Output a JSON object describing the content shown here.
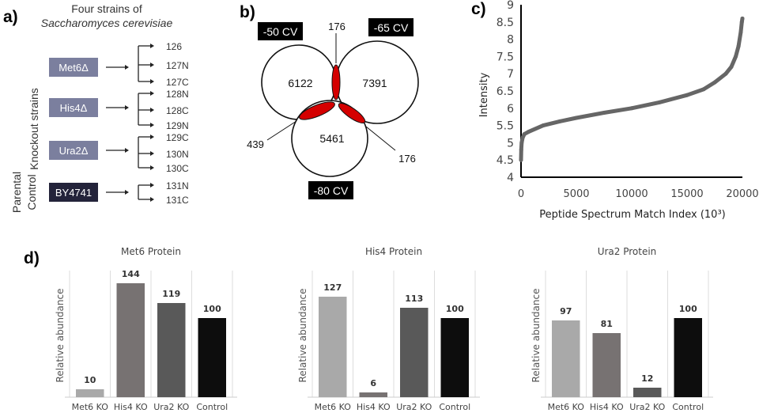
{
  "panel_labels": {
    "a": "a)",
    "b": "b)",
    "c": "c)",
    "d": "d)"
  },
  "panel_a": {
    "title_line1": "Four strains of",
    "title_line2": "Saccharomyces cerevisiae",
    "group_knockout": "Knockout strains",
    "group_parental_1": "Parental",
    "group_parental_2": "Control",
    "strains": [
      {
        "name": "Met6Δ",
        "color": "#7b7f9e",
        "channels": [
          "126",
          "127N",
          "127C"
        ]
      },
      {
        "name": "His4Δ",
        "color": "#7b7f9e",
        "channels": [
          "128N",
          "128C",
          "129N"
        ]
      },
      {
        "name": "Ura2Δ",
        "color": "#7b7f9e",
        "channels": [
          "129C",
          "130N",
          "130C"
        ]
      },
      {
        "name": "BY4741",
        "color": "#23233a",
        "channels": [
          "131N",
          "131C"
        ]
      }
    ]
  },
  "chart_data": [
    {
      "type": "venn",
      "sets": [
        "-50 CV",
        "-65 CV",
        "-80 CV"
      ],
      "unique": {
        "-50 CV": 6122,
        "-65 CV": 7391,
        "-80 CV": 5461
      },
      "overlaps": [
        {
          "sets": [
            "-50 CV",
            "-65 CV"
          ],
          "value": 176
        },
        {
          "sets": [
            "-50 CV",
            "-80 CV"
          ],
          "value": 439
        },
        {
          "sets": [
            "-65 CV",
            "-80 CV"
          ],
          "value": 176
        }
      ],
      "overlap_color": "#d40000"
    },
    {
      "type": "scatter",
      "xlabel": "Peptide Spectrum Match Index (10³)",
      "ylabel": "Intensity",
      "xlim": [
        0,
        20000
      ],
      "ylim": [
        4,
        9
      ],
      "xticks": [
        "0",
        "5000",
        "10000",
        "15000",
        "20000"
      ],
      "yticks": [
        "4",
        "4.5",
        "5",
        "5.5",
        "6",
        "6.5",
        "7",
        "7.5",
        "8",
        "8.5",
        "9"
      ],
      "grid": false,
      "color": "#666666",
      "points": [
        [
          0,
          4.5
        ],
        [
          20,
          4.8
        ],
        [
          60,
          5.0
        ],
        [
          150,
          5.15
        ],
        [
          300,
          5.25
        ],
        [
          700,
          5.32
        ],
        [
          2000,
          5.5
        ],
        [
          3500,
          5.62
        ],
        [
          5000,
          5.72
        ],
        [
          7500,
          5.87
        ],
        [
          10000,
          6.0
        ],
        [
          12500,
          6.17
        ],
        [
          15000,
          6.38
        ],
        [
          16500,
          6.55
        ],
        [
          17500,
          6.75
        ],
        [
          18500,
          7.0
        ],
        [
          19000,
          7.2
        ],
        [
          19400,
          7.5
        ],
        [
          19650,
          7.8
        ],
        [
          19850,
          8.2
        ],
        [
          19950,
          8.5
        ],
        [
          20000,
          8.6
        ]
      ]
    },
    {
      "type": "bar",
      "title": "Met6 Protein",
      "ylabel": "Relative abundance",
      "categories": [
        "Met6 KO",
        "His4 KO",
        "Ura2 KO",
        "Control"
      ],
      "values": [
        10,
        144,
        119,
        100
      ],
      "colors": [
        "#a9a9a9",
        "#777272",
        "#595959",
        "#0d0d0d"
      ]
    },
    {
      "type": "bar",
      "title": "His4 Protein",
      "ylabel": "Relative abundance",
      "categories": [
        "Met6 KO",
        "His4 KO",
        "Ura2 KO",
        "Control"
      ],
      "values": [
        127,
        6,
        113,
        100
      ],
      "colors": [
        "#a9a9a9",
        "#777272",
        "#595959",
        "#0d0d0d"
      ]
    },
    {
      "type": "bar",
      "title": "Ura2 Protein",
      "ylabel": "Relative abundance",
      "categories": [
        "Met6 KO",
        "His4 KO",
        "Ura2 KO",
        "Control"
      ],
      "values": [
        97,
        81,
        12,
        100
      ],
      "colors": [
        "#a9a9a9",
        "#777272",
        "#595959",
        "#0d0d0d"
      ]
    }
  ]
}
